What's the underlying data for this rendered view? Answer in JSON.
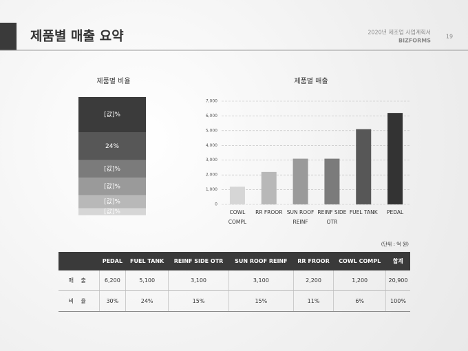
{
  "header": {
    "title": "제품별 매출 요약",
    "doc": "2020년 제조업 사업계획서",
    "brand": "BIZFORMS",
    "page": "19"
  },
  "chart_data": [
    {
      "type": "stacked",
      "title": "제품별 비율",
      "series": [
        {
          "name": "PEDAL",
          "color": "#3b3b3b",
          "values": [
            30
          ],
          "value_labels": [
            "[값]%"
          ]
        },
        {
          "name": "FUEL TANK",
          "color": "#575757",
          "values": [
            24
          ],
          "value_labels": [
            "24%"
          ]
        },
        {
          "name": "REINF SIDE OTR",
          "color": "#7b7b7b",
          "values": [
            15
          ],
          "value_labels": [
            "[값]%"
          ]
        },
        {
          "name": "SUN ROOF REINF",
          "color": "#9a9a9a",
          "values": [
            15
          ],
          "value_labels": [
            "[값]%"
          ]
        },
        {
          "name": "RR FROOR",
          "color": "#b8b8b8",
          "values": [
            11
          ],
          "value_labels": [
            "[값]%"
          ]
        },
        {
          "name": "COWL COMPL",
          "color": "#d6d6d6",
          "values": [
            6
          ],
          "value_labels": [
            "[값]%"
          ]
        }
      ]
    },
    {
      "type": "bar",
      "title": "제품별 매출",
      "categories": [
        "COWL COMPL",
        "RR FROOR",
        "SUN ROOF REINF",
        "REINF SIDE OTR",
        "FUEL TANK",
        "PEDAL"
      ],
      "values": [
        1200,
        2200,
        3100,
        3100,
        5100,
        6200
      ],
      "colors": [
        "#d6d6d6",
        "#b8b8b8",
        "#9a9a9a",
        "#7b7b7b",
        "#575757",
        "#333333"
      ],
      "ylim": [
        0,
        7000
      ],
      "yticks": [
        0,
        {
          "value": 1000,
          "label": "1,000"
        },
        {
          "value": 2000,
          "label": "2,000"
        },
        {
          "value": 3000,
          "label": "3,000"
        },
        {
          "value": 4000,
          "label": "4,000"
        },
        {
          "value": 5000,
          "label": "5,000"
        },
        {
          "value": 6000,
          "label": "6,000"
        },
        {
          "value": 7000,
          "label": "7,000"
        }
      ],
      "grid": true
    }
  ],
  "table": {
    "unit": "(단위 : 억 원)",
    "header": [
      "PEDAL",
      "FUEL TANK",
      "REINF SIDE OTR",
      "SUN ROOF REINF",
      "RR FROOR",
      "COWL COMPL",
      "합계"
    ],
    "rows": [
      [
        "매 출",
        "6,200",
        "5,100",
        "3,100",
        "3,100",
        "2,200",
        "1,200",
        "20,900"
      ],
      [
        "비 율",
        "30%",
        "24%",
        "15%",
        "15%",
        "11%",
        "6%",
        "100%"
      ]
    ]
  }
}
